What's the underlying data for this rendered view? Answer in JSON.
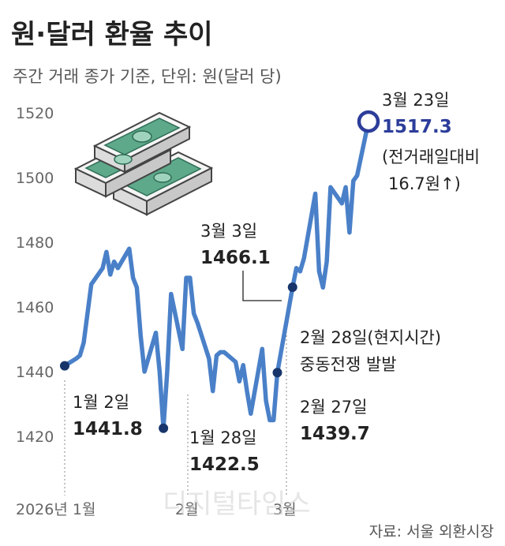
{
  "title": "원·달러 환율 추이",
  "subtitle": "주간 거래 종가 기준, 단위: 원(달러 당)",
  "source": "자료: 서울 외환시장",
  "watermark": "디지털타임스",
  "colors": {
    "line": "#4a80c8",
    "marker": "#17356b",
    "highlight": "#2c3d9a",
    "text": "#222222"
  },
  "icons": {
    "illustration": "money-stack-icon"
  },
  "chart_data": {
    "type": "line",
    "title": "원·달러 환율 추이",
    "ylabel": "",
    "ylim": [
      1416,
      1522
    ],
    "yticks": [
      1420,
      1440,
      1460,
      1480,
      1500,
      1520
    ],
    "ytick_labels": [
      "1420",
      "1440",
      "1460",
      "1480",
      "1500",
      "1520"
    ],
    "grid": false,
    "x": [
      "2026-01-02",
      "2026-01-05",
      "2026-01-06",
      "2026-01-07",
      "2026-01-08",
      "2026-01-09",
      "2026-01-12",
      "2026-01-13",
      "2026-01-14",
      "2026-01-15",
      "2026-01-16",
      "2026-01-19",
      "2026-01-20",
      "2026-01-21",
      "2026-01-22",
      "2026-01-23",
      "2026-01-26",
      "2026-01-27",
      "2026-01-28",
      "2026-01-29",
      "2026-01-30",
      "2026-02-02",
      "2026-02-03",
      "2026-02-04",
      "2026-02-05",
      "2026-02-06",
      "2026-02-09",
      "2026-02-10",
      "2026-02-11",
      "2026-02-12",
      "2026-02-13",
      "2026-02-16",
      "2026-02-17",
      "2026-02-18",
      "2026-02-19",
      "2026-02-20",
      "2026-02-23",
      "2026-02-24",
      "2026-02-25",
      "2026-02-26",
      "2026-02-27",
      "2026-03-03",
      "2026-03-04",
      "2026-03-05",
      "2026-03-06",
      "2026-03-09",
      "2026-03-10",
      "2026-03-11",
      "2026-03-12",
      "2026-03-13",
      "2026-03-16",
      "2026-03-17",
      "2026-03-18",
      "2026-03-19",
      "2026-03-20",
      "2026-03-23"
    ],
    "series": [
      {
        "values": [
          1441.8,
          1444,
          1445,
          1449,
          1458,
          1467,
          1472,
          1477,
          1470,
          1474,
          1472,
          1478,
          1469,
          1466,
          1451,
          1440,
          1452,
          1440,
          1422.5,
          1440,
          1464,
          1447,
          1469,
          1469,
          1458,
          1455,
          1444,
          1434,
          1445,
          1446,
          1446,
          1443,
          1437,
          1442,
          1434,
          1427,
          1447,
          1431,
          1425,
          1425,
          1439.7,
          1466.1,
          1472,
          1471,
          1475,
          1495,
          1471,
          1466,
          1474,
          1497,
          1492,
          1497,
          1483,
          1499,
          1500.6,
          1517.3
        ]
      }
    ],
    "xtick_labels": [
      {
        "x": "2026-01-02",
        "label": "2026년 1월"
      },
      {
        "x": "2026-02-02",
        "label": "2월"
      },
      {
        "x": "2026-03-03",
        "label": "3월"
      }
    ],
    "annotations": [
      {
        "x": "2026-01-02",
        "date": "1월 2일",
        "value": "1441.8"
      },
      {
        "x": "2026-01-28",
        "date": "1월 28일",
        "value": "1422.5"
      },
      {
        "x": "2026-02-27",
        "date": "2월 27일",
        "value": "1439.7"
      },
      {
        "x": "2026-03-03",
        "date": "3월 3일",
        "value": "1466.1"
      },
      {
        "x": "2026-03-03",
        "note1": "2월 28일(현지시간)",
        "note2": "중동전쟁 발발"
      },
      {
        "x": "2026-03-23",
        "date": "3월 23일",
        "value": "1517.3",
        "change1": "(전거래일대비",
        "change2": "16.7원↑)"
      }
    ]
  }
}
